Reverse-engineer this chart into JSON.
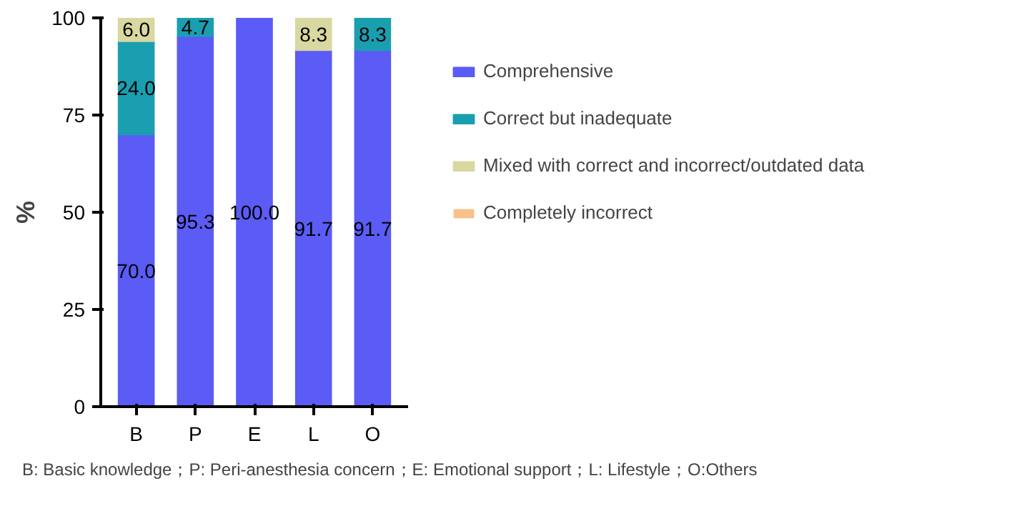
{
  "chart_data": {
    "type": "bar",
    "stacked": true,
    "ylabel": "%",
    "categories": [
      "B",
      "P",
      "E",
      "L",
      "O"
    ],
    "series": [
      {
        "name": "Comprehensive",
        "color": "#5b5bf5",
        "values": [
          70.0,
          95.3,
          100.0,
          91.7,
          91.7
        ],
        "value_labels": [
          "70.0",
          "95.3",
          "100.0",
          "91.7",
          "91.7"
        ]
      },
      {
        "name": "Correct but inadequate",
        "color": "#1a9fb0",
        "values": [
          24.0,
          4.7,
          null,
          null,
          8.3
        ],
        "value_labels": [
          "24.0",
          "4.7",
          null,
          null,
          "8.3"
        ]
      },
      {
        "name": "Mixed with correct and incorrect/outdated data",
        "color": "#d8d8a0",
        "values": [
          6.0,
          null,
          null,
          8.3,
          null
        ],
        "value_labels": [
          "6.0",
          null,
          null,
          "8.3",
          null
        ]
      },
      {
        "name": "Completely incorrect",
        "color": "#f8c08a",
        "values": [
          null,
          null,
          null,
          null,
          null
        ]
      }
    ],
    "ylim": [
      0,
      100
    ],
    "yticks": [
      0,
      25,
      50,
      75,
      100
    ],
    "grid": false,
    "legend": "right",
    "annotations": [
      "B: Basic knowledge；P: Peri-anesthesia concern；E: Emotional support；L: Lifestyle；O:Others"
    ]
  }
}
